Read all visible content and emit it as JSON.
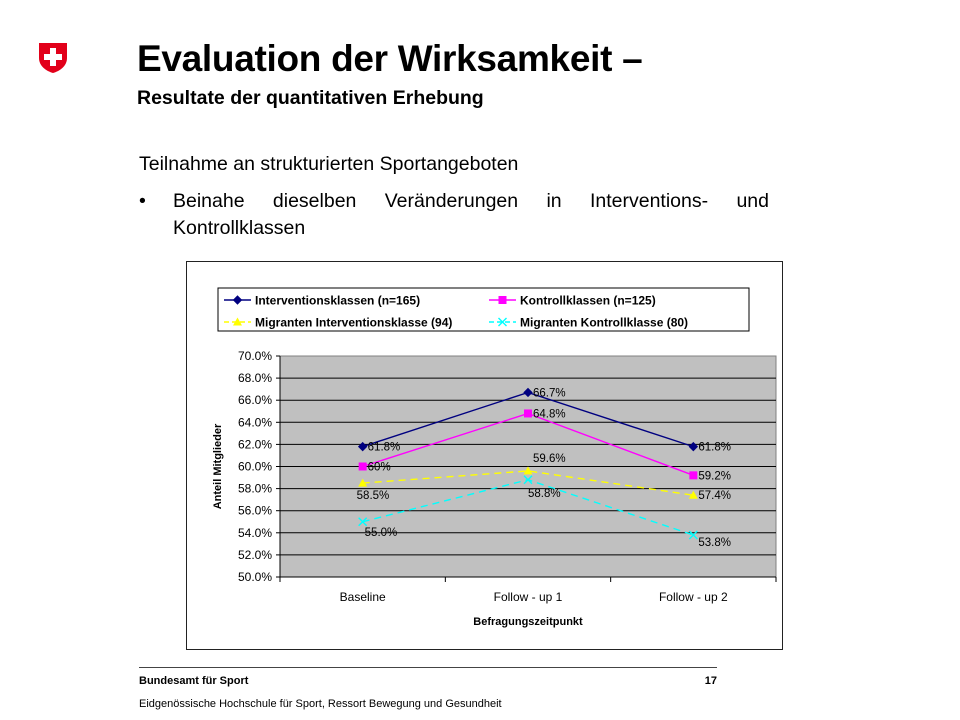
{
  "slide": {
    "title": "Evaluation der Wirksamkeit –",
    "subtitle": "Resultate der quantitativen Erhebung",
    "heading": "Teilnahme an strukturierten Sportangeboten",
    "bullet_symbol": "•",
    "bullet": "Beinahe dieselben Veränderungen in Interventions- und Kontrollklassen",
    "logo_icon": "swiss-cross-shield-icon",
    "logo_colors": {
      "shield": "#e2001a",
      "cross": "#ffffff"
    }
  },
  "footer": {
    "org": "Bundesamt für Sport",
    "page": "17",
    "subline": "Eidgenössische Hochschule für Sport, Ressort Bewegung und Gesundheit"
  },
  "chart_data": {
    "type": "line",
    "categories": [
      "Baseline",
      "Follow - up 1",
      "Follow - up 2"
    ],
    "xlabel": "Befragungszeitpunkt",
    "ylabel": "Anteil Mitglieder",
    "ylim": [
      50,
      70
    ],
    "ytick_step": 2,
    "ytick_labels": [
      "50.0%",
      "52.0%",
      "54.0%",
      "56.0%",
      "58.0%",
      "60.0%",
      "62.0%",
      "64.0%",
      "66.0%",
      "68.0%",
      "70.0%"
    ],
    "grid": true,
    "plot_background": "#c0c0c0",
    "legend_position": "top",
    "series": [
      {
        "name": "Interventionsklassen (n=165)",
        "values": [
          61.8,
          66.7,
          61.8
        ],
        "labels": [
          "61.8%",
          "66.7%",
          "61.8%"
        ],
        "color": "#000080",
        "marker": "diamond",
        "dash": "solid"
      },
      {
        "name": "Kontrollklassen (n=125)",
        "values": [
          60.0,
          64.8,
          59.2
        ],
        "labels": [
          "60%",
          "64.8%",
          "59.2%"
        ],
        "color": "#ff00ff",
        "marker": "square",
        "dash": "solid"
      },
      {
        "name": "Migranten Interventionsklasse (94)",
        "values": [
          58.5,
          59.6,
          57.4
        ],
        "labels": [
          "58.5%",
          "59.6%",
          "57.4%"
        ],
        "color": "#ffff00",
        "marker": "triangle",
        "dash": "dashed"
      },
      {
        "name": "Migranten Kontrollklasse (80)",
        "values": [
          55.0,
          58.8,
          53.8
        ],
        "labels": [
          "55.0%",
          "58.8%",
          "53.8%"
        ],
        "color": "#00ffff",
        "marker": "x",
        "dash": "dashed"
      }
    ]
  }
}
